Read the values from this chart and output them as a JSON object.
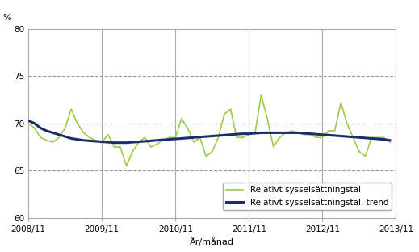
{
  "title": "",
  "ylabel_text": "%",
  "xlabel": "År/månad",
  "ylim": [
    60,
    80
  ],
  "yticks": [
    60,
    65,
    70,
    75,
    80
  ],
  "xlim": [
    0,
    60
  ],
  "xtick_positions": [
    0,
    12,
    24,
    36,
    48,
    60
  ],
  "xtick_labels": [
    "2008/11",
    "2009/11",
    "2010/11",
    "2011/11",
    "2012/11",
    "2013/11"
  ],
  "vline_positions": [
    12,
    24,
    36,
    48,
    60
  ],
  "green_color": "#99cc44",
  "dark_navy_color": "#1a2e6b",
  "bg_color": "#ffffff",
  "spine_color": "#aaaaaa",
  "grid_color": "#999999",
  "vline_color": "#aaaaaa",
  "legend_labels": [
    "Relativt sysselsättningstal",
    "Relativt sysselsättningstal, trend"
  ],
  "green_values": [
    70.0,
    69.5,
    68.5,
    68.2,
    68.0,
    68.5,
    69.5,
    71.5,
    70.0,
    69.0,
    68.5,
    68.2,
    68.0,
    68.8,
    67.5,
    67.5,
    65.5,
    67.0,
    68.0,
    68.5,
    67.5,
    67.8,
    68.2,
    68.5,
    68.5,
    70.5,
    69.5,
    68.0,
    68.5,
    66.5,
    67.0,
    68.5,
    71.0,
    71.5,
    68.5,
    68.5,
    68.8,
    69.0,
    73.0,
    70.5,
    67.5,
    68.5,
    69.0,
    69.2,
    69.0,
    68.8,
    68.8,
    68.5,
    68.5,
    69.2,
    69.2,
    72.2,
    70.0,
    68.5,
    67.0,
    66.5,
    68.5,
    68.5,
    68.5,
    68.0
  ],
  "trend_values": [
    70.3,
    70.0,
    69.5,
    69.2,
    69.0,
    68.8,
    68.6,
    68.4,
    68.3,
    68.2,
    68.15,
    68.1,
    68.05,
    68.0,
    67.95,
    67.95,
    67.95,
    68.0,
    68.05,
    68.1,
    68.15,
    68.2,
    68.25,
    68.3,
    68.35,
    68.4,
    68.45,
    68.5,
    68.55,
    68.6,
    68.65,
    68.7,
    68.75,
    68.8,
    68.85,
    68.9,
    68.9,
    68.95,
    69.0,
    69.0,
    69.0,
    69.0,
    69.0,
    69.0,
    69.0,
    68.95,
    68.9,
    68.85,
    68.8,
    68.75,
    68.7,
    68.65,
    68.6,
    68.55,
    68.5,
    68.45,
    68.4,
    68.35,
    68.3,
    68.2
  ]
}
